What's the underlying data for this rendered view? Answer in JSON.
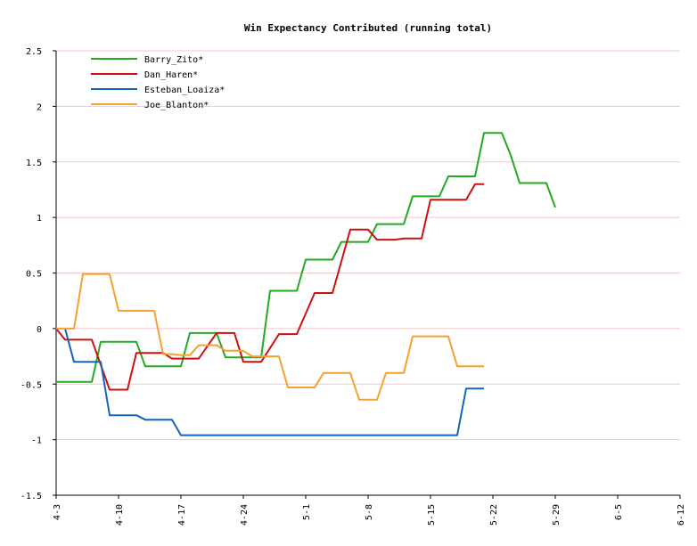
{
  "chart_data": {
    "type": "line",
    "title": "Win Expectancy Contributed (running total)",
    "xlabel": "",
    "ylabel": "",
    "ylim": [
      -1.5,
      2.5
    ],
    "yticks": [
      -1.5,
      -1,
      -0.5,
      0,
      0.5,
      1,
      1.5,
      2,
      2.5
    ],
    "ytick_labels": [
      "-1.5",
      "-1",
      "-0.5",
      "0",
      "0.5",
      "1",
      "1.5",
      "2",
      "2.5"
    ],
    "xtick_labels": [
      "4-3",
      "4-10",
      "4-17",
      "4-24",
      "5-1",
      "5-8",
      "5-15",
      "5-22",
      "5-29",
      "6-5",
      "6-12"
    ],
    "xticks_day": [
      0,
      7,
      14,
      21,
      28,
      35,
      42,
      49,
      56,
      63,
      70
    ],
    "xlim_day": [
      0,
      70
    ],
    "grid": true,
    "legend_position": "top-left",
    "series": [
      {
        "name": "Barry_Zito*",
        "color": "#22aa22",
        "points": [
          [
            0,
            -0.48
          ],
          [
            2,
            -0.48
          ],
          [
            4,
            -0.48
          ],
          [
            5,
            -0.12
          ],
          [
            6,
            -0.12
          ],
          [
            7,
            -0.12
          ],
          [
            8,
            -0.12
          ],
          [
            9,
            -0.12
          ],
          [
            10,
            -0.34
          ],
          [
            12,
            -0.34
          ],
          [
            13,
            -0.34
          ],
          [
            14,
            -0.34
          ],
          [
            15,
            -0.04
          ],
          [
            17,
            -0.04
          ],
          [
            18,
            -0.04
          ],
          [
            19,
            -0.26
          ],
          [
            22,
            -0.26
          ],
          [
            23,
            -0.26
          ],
          [
            24,
            0.34
          ],
          [
            26,
            0.34
          ],
          [
            27,
            0.34
          ],
          [
            28,
            0.62
          ],
          [
            30,
            0.62
          ],
          [
            31,
            0.62
          ],
          [
            32,
            0.78
          ],
          [
            34,
            0.78
          ],
          [
            35,
            0.78
          ],
          [
            36,
            0.94
          ],
          [
            38,
            0.94
          ],
          [
            39,
            0.94
          ],
          [
            40,
            1.19
          ],
          [
            42,
            1.19
          ],
          [
            43,
            1.19
          ],
          [
            44,
            1.37
          ],
          [
            46,
            1.37
          ],
          [
            47,
            1.37
          ],
          [
            48,
            1.76
          ],
          [
            49,
            1.76
          ],
          [
            50,
            1.76
          ],
          [
            51,
            1.56
          ],
          [
            52,
            1.31
          ],
          [
            54,
            1.31
          ],
          [
            55,
            1.31
          ],
          [
            56,
            1.09
          ]
        ]
      },
      {
        "name": "Dan_Haren*",
        "color": "#cc1111",
        "points": [
          [
            0,
            0
          ],
          [
            1,
            -0.1
          ],
          [
            3,
            -0.1
          ],
          [
            4,
            -0.1
          ],
          [
            6,
            -0.55
          ],
          [
            7,
            -0.55
          ],
          [
            8,
            -0.55
          ],
          [
            9,
            -0.22
          ],
          [
            11,
            -0.22
          ],
          [
            12,
            -0.22
          ],
          [
            13,
            -0.27
          ],
          [
            15,
            -0.27
          ],
          [
            16,
            -0.27
          ],
          [
            18,
            -0.04
          ],
          [
            20,
            -0.04
          ],
          [
            21,
            -0.3
          ],
          [
            23,
            -0.3
          ],
          [
            25,
            -0.05
          ],
          [
            27,
            -0.05
          ],
          [
            29,
            0.32
          ],
          [
            31,
            0.32
          ],
          [
            33,
            0.89
          ],
          [
            35,
            0.89
          ],
          [
            36,
            0.8
          ],
          [
            38,
            0.8
          ],
          [
            39,
            0.81
          ],
          [
            41,
            0.81
          ],
          [
            42,
            1.16
          ],
          [
            44,
            1.16
          ],
          [
            46,
            1.16
          ],
          [
            47,
            1.3
          ],
          [
            48,
            1.3
          ]
        ]
      },
      {
        "name": "Esteban_Loaiza*",
        "color": "#1166bb",
        "points": [
          [
            1,
            0
          ],
          [
            2,
            -0.3
          ],
          [
            3,
            -0.3
          ],
          [
            5,
            -0.3
          ],
          [
            6,
            -0.78
          ],
          [
            8,
            -0.78
          ],
          [
            9,
            -0.78
          ],
          [
            10,
            -0.82
          ],
          [
            12,
            -0.82
          ],
          [
            13,
            -0.82
          ],
          [
            14,
            -0.96
          ],
          [
            16,
            -0.96
          ],
          [
            20,
            -0.96
          ],
          [
            24,
            -0.96
          ],
          [
            28,
            -0.96
          ],
          [
            32,
            -0.96
          ],
          [
            36,
            -0.96
          ],
          [
            40,
            -0.96
          ],
          [
            44,
            -0.96
          ],
          [
            45,
            -0.96
          ],
          [
            46,
            -0.54
          ],
          [
            48,
            -0.54
          ]
        ]
      },
      {
        "name": "Joe_Blanton*",
        "color": "#f5a030",
        "points": [
          [
            0,
            0
          ],
          [
            2,
            0
          ],
          [
            3,
            0.49
          ],
          [
            5,
            0.49
          ],
          [
            6,
            0.49
          ],
          [
            7,
            0.16
          ],
          [
            8,
            0.16
          ],
          [
            10,
            0.16
          ],
          [
            11,
            0.16
          ],
          [
            12,
            -0.23
          ],
          [
            13,
            -0.23
          ],
          [
            14,
            -0.24
          ],
          [
            15,
            -0.24
          ],
          [
            16,
            -0.15
          ],
          [
            18,
            -0.15
          ],
          [
            19,
            -0.2
          ],
          [
            21,
            -0.2
          ],
          [
            22,
            -0.25
          ],
          [
            24,
            -0.25
          ],
          [
            25,
            -0.25
          ],
          [
            26,
            -0.53
          ],
          [
            28,
            -0.53
          ],
          [
            29,
            -0.53
          ],
          [
            30,
            -0.4
          ],
          [
            32,
            -0.4
          ],
          [
            33,
            -0.4
          ],
          [
            34,
            -0.64
          ],
          [
            36,
            -0.64
          ],
          [
            37,
            -0.4
          ],
          [
            39,
            -0.4
          ],
          [
            40,
            -0.07
          ],
          [
            42,
            -0.07
          ],
          [
            44,
            -0.07
          ],
          [
            45,
            -0.34
          ],
          [
            47,
            -0.34
          ],
          [
            48,
            -0.34
          ]
        ]
      }
    ]
  }
}
